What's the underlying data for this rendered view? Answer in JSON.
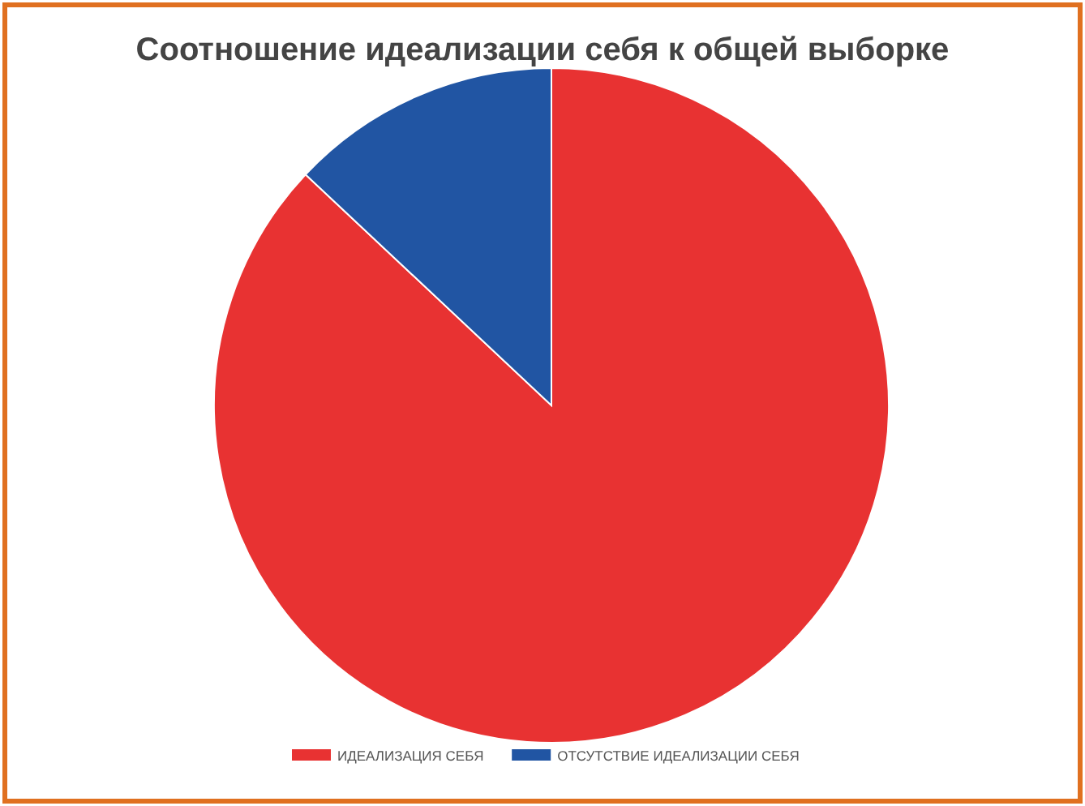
{
  "chart_data": {
    "type": "pie",
    "title": "Соотношение идеализации себя к общей выборке",
    "categories": [
      "ИДЕАЛИЗАЦИЯ СЕБЯ",
      "ОТСУТСТВИЕ ИДЕАЛИЗАЦИИ СЕБЯ"
    ],
    "values": [
      87,
      13
    ],
    "colors": [
      "#e83232",
      "#2155a3"
    ],
    "legend": "bottom"
  }
}
